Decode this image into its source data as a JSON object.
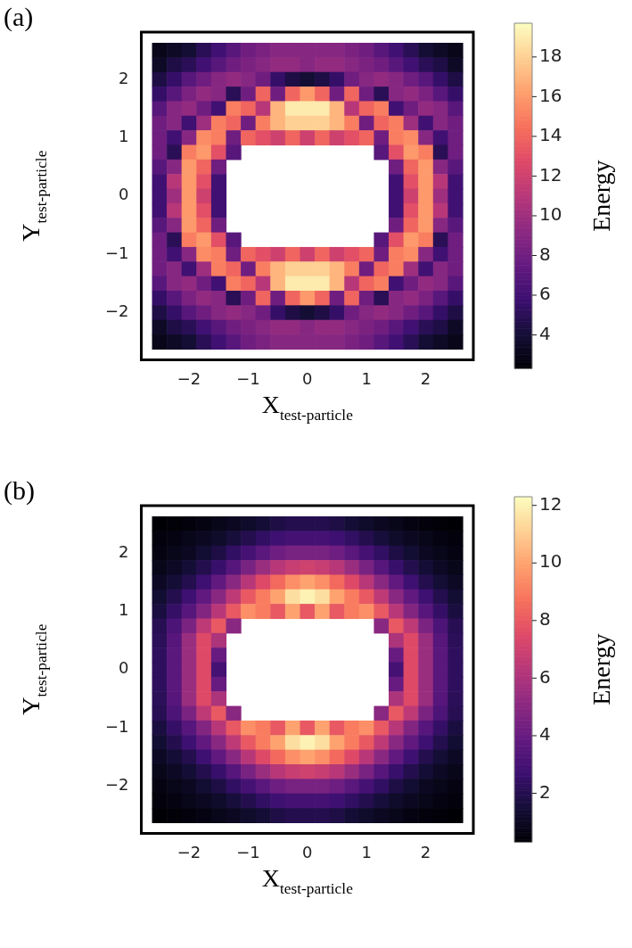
{
  "chart_data": [
    {
      "type": "heatmap",
      "title": "(a)",
      "xlabel": "X$_{test-particle}$",
      "ylabel": "Y$_{test-particle}$",
      "clabel": "Energy",
      "categories": [
        null,
        null,
        "−2",
        null,
        null,
        null,
        "−1",
        null,
        null,
        null,
        "0",
        null,
        null,
        null,
        "1",
        null,
        null,
        null,
        "2",
        null,
        null
      ],
      "y_categories": [
        null,
        null,
        "2",
        null,
        null,
        null,
        "1",
        null,
        null,
        null,
        "0",
        null,
        null,
        null,
        "−1",
        null,
        null,
        null,
        "−2",
        null,
        null
      ],
      "clim": [
        2.3,
        19.7
      ],
      "cticks": [
        4,
        6,
        8,
        10,
        12,
        14,
        16,
        18
      ],
      "cells": [
        [
          3,
          3.5,
          4,
          5,
          6,
          7,
          8,
          8.5,
          9,
          9,
          9,
          9,
          9,
          8.5,
          8,
          7,
          6,
          5,
          4,
          3.5,
          3
        ],
        [
          3.5,
          4.5,
          5,
          6,
          7,
          8,
          8.5,
          9,
          9.5,
          9.5,
          9,
          9.5,
          9.5,
          9,
          8.5,
          8,
          7,
          6,
          5,
          4.5,
          3.5
        ],
        [
          4.5,
          5.5,
          7,
          8,
          9,
          9.5,
          9,
          8,
          5.5,
          4.5,
          4,
          4.5,
          5.5,
          8,
          9,
          9.5,
          9,
          8,
          7,
          5.5,
          4.5
        ],
        [
          5.5,
          7,
          8.5,
          9.5,
          9,
          5,
          8,
          14,
          8,
          14,
          16,
          14,
          8,
          14,
          8,
          5,
          9,
          9.5,
          8.5,
          7,
          5.5
        ],
        [
          7,
          9,
          9.5,
          8,
          6,
          15,
          14,
          11,
          17,
          19,
          19,
          19,
          17,
          11,
          14,
          15,
          6,
          8,
          9.5,
          9,
          7
        ],
        [
          8,
          9,
          6,
          10,
          15,
          14,
          8,
          15,
          17,
          18,
          18,
          18,
          17,
          15,
          8,
          14,
          15,
          10,
          6,
          9,
          8
        ],
        [
          8,
          6,
          9,
          15.5,
          15,
          8,
          14,
          13,
          12,
          14,
          12,
          14,
          12,
          13,
          14,
          8,
          15,
          15.5,
          9,
          6,
          8
        ],
        [
          8,
          5,
          15,
          16,
          13,
          7,
          null,
          null,
          null,
          null,
          null,
          null,
          null,
          null,
          null,
          7,
          13,
          16,
          15,
          5,
          8
        ],
        [
          7,
          9,
          16,
          14,
          8,
          null,
          null,
          null,
          null,
          null,
          null,
          null,
          null,
          null,
          null,
          null,
          8,
          14,
          16,
          9,
          7
        ],
        [
          6,
          11,
          16,
          13,
          6,
          null,
          null,
          null,
          null,
          null,
          null,
          null,
          null,
          null,
          null,
          null,
          6,
          13,
          16,
          11,
          6
        ],
        [
          6,
          10,
          16,
          12,
          6,
          null,
          null,
          null,
          null,
          null,
          null,
          null,
          null,
          null,
          null,
          null,
          6,
          12,
          16,
          10,
          6
        ],
        [
          6,
          11,
          16,
          13,
          6,
          null,
          null,
          null,
          null,
          null,
          null,
          null,
          null,
          null,
          null,
          null,
          6,
          13,
          16,
          11,
          6
        ],
        [
          7,
          9,
          16,
          14,
          8,
          null,
          null,
          null,
          null,
          null,
          null,
          null,
          null,
          null,
          null,
          null,
          8,
          14,
          16,
          9,
          7
        ],
        [
          8,
          5,
          15,
          16,
          13,
          7,
          null,
          null,
          null,
          null,
          null,
          null,
          null,
          null,
          null,
          7,
          13,
          16,
          15,
          5,
          8
        ],
        [
          8,
          6,
          9,
          15.5,
          15,
          8,
          14,
          13,
          12,
          14,
          12,
          14,
          12,
          13,
          14,
          8,
          15,
          15.5,
          9,
          6,
          8
        ],
        [
          8,
          9,
          6,
          10,
          15,
          14,
          8,
          15,
          17,
          18,
          18,
          18,
          17,
          15,
          8,
          14,
          15,
          10,
          6,
          9,
          8
        ],
        [
          7,
          9,
          9.5,
          8,
          6,
          15,
          14,
          11,
          17,
          19,
          19,
          19,
          17,
          11,
          14,
          15,
          6,
          8,
          9.5,
          9,
          7
        ],
        [
          5.5,
          7,
          8.5,
          9.5,
          9,
          5,
          8,
          14,
          8,
          14,
          16,
          14,
          8,
          14,
          8,
          5,
          9,
          9.5,
          8.5,
          7,
          5.5
        ],
        [
          4.5,
          5.5,
          7,
          8,
          9,
          9.5,
          9,
          8,
          5.5,
          4.5,
          4,
          4.5,
          5.5,
          8,
          9,
          9.5,
          9,
          8,
          7,
          5.5,
          4.5
        ],
        [
          3.5,
          4.5,
          5,
          6,
          7,
          8,
          8.5,
          9,
          9.5,
          9.5,
          9,
          9.5,
          9.5,
          9,
          8.5,
          8,
          7,
          6,
          5,
          4.5,
          3.5
        ],
        [
          3,
          3.5,
          4,
          5,
          6,
          7,
          8,
          8.5,
          9,
          9,
          9,
          9,
          9,
          8.5,
          8,
          7,
          6,
          5,
          4,
          3.5,
          3
        ]
      ]
    },
    {
      "type": "heatmap",
      "title": "(b)",
      "xlabel": "X$_{test-particle}$",
      "ylabel": "Y$_{test-particle}$",
      "clabel": "Energy",
      "categories": [
        null,
        null,
        "−2",
        null,
        null,
        null,
        "−1",
        null,
        null,
        null,
        "0",
        null,
        null,
        null,
        "1",
        null,
        null,
        null,
        "2",
        null,
        null
      ],
      "y_categories": [
        null,
        null,
        "2",
        null,
        null,
        null,
        "1",
        null,
        null,
        null,
        "0",
        null,
        null,
        null,
        "−1",
        null,
        null,
        null,
        "−2",
        null,
        null
      ],
      "clim": [
        0.3,
        12.3
      ],
      "cticks": [
        2,
        4,
        6,
        8,
        10,
        12
      ],
      "cells": [
        [
          0.3,
          0.4,
          0.5,
          0.6,
          0.8,
          1,
          1.2,
          1.5,
          1.8,
          2,
          2,
          2,
          1.8,
          1.5,
          1.2,
          1,
          0.8,
          0.6,
          0.5,
          0.4,
          0.3
        ],
        [
          0.5,
          0.6,
          0.8,
          1,
          1.2,
          1.6,
          2,
          2.4,
          2.8,
          3,
          3,
          3,
          2.8,
          2.4,
          2,
          1.6,
          1.2,
          1,
          0.8,
          0.6,
          0.5
        ],
        [
          0.6,
          0.8,
          1,
          1.4,
          1.8,
          2.4,
          3,
          3.6,
          4.2,
          4.5,
          4.5,
          4.5,
          4.2,
          3.6,
          3,
          2.4,
          1.8,
          1.4,
          1,
          0.8,
          0.6
        ],
        [
          0.8,
          1.1,
          1.5,
          2,
          2.6,
          3.5,
          4.5,
          5.5,
          6.3,
          6.8,
          7,
          6.8,
          6.3,
          5.5,
          4.5,
          3.5,
          2.6,
          2,
          1.5,
          1.1,
          0.8
        ],
        [
          1.1,
          1.5,
          2,
          2.8,
          3.8,
          5,
          6.3,
          7.5,
          8.5,
          9.5,
          10,
          9.5,
          8.5,
          7.5,
          6.3,
          5,
          3.8,
          2.8,
          2,
          1.5,
          1.1
        ],
        [
          1.4,
          2,
          2.8,
          3.8,
          5,
          6.5,
          8,
          9,
          10,
          11.5,
          12,
          11.5,
          10,
          9,
          8,
          6.5,
          5,
          3.8,
          2.8,
          2,
          1.4
        ],
        [
          1.7,
          2.5,
          3.5,
          4.8,
          6.3,
          8,
          9.5,
          9,
          8,
          10,
          8,
          10,
          8,
          9,
          9.5,
          8,
          6.3,
          4.8,
          3.5,
          2.5,
          1.7
        ],
        [
          2.1,
          3.2,
          4.6,
          6.5,
          8,
          5,
          null,
          null,
          null,
          null,
          null,
          null,
          null,
          null,
          null,
          5,
          8,
          6.5,
          4.6,
          3.2,
          2.1
        ],
        [
          2.2,
          3.5,
          5.5,
          7.5,
          6,
          null,
          null,
          null,
          null,
          null,
          null,
          null,
          null,
          null,
          null,
          null,
          6,
          7.5,
          5.5,
          3.5,
          2.2
        ],
        [
          2.3,
          3.6,
          5.5,
          7.5,
          4,
          null,
          null,
          null,
          null,
          null,
          null,
          null,
          null,
          null,
          null,
          null,
          4,
          7.5,
          5.5,
          3.6,
          2.3
        ],
        [
          2.3,
          3.6,
          5.5,
          7.5,
          3,
          null,
          null,
          null,
          null,
          null,
          null,
          null,
          null,
          null,
          null,
          null,
          3,
          7.5,
          5.5,
          3.6,
          2.3
        ],
        [
          2.3,
          3.6,
          5.5,
          7.5,
          4,
          null,
          null,
          null,
          null,
          null,
          null,
          null,
          null,
          null,
          null,
          null,
          4,
          7.5,
          5.5,
          3.6,
          2.3
        ],
        [
          2.2,
          3.5,
          5.5,
          7.5,
          6,
          null,
          null,
          null,
          null,
          null,
          null,
          null,
          null,
          null,
          null,
          null,
          6,
          7.5,
          5.5,
          3.5,
          2.2
        ],
        [
          2.1,
          3.2,
          4.6,
          6.5,
          8,
          5,
          null,
          null,
          null,
          null,
          null,
          null,
          null,
          null,
          null,
          5,
          8,
          6.5,
          4.6,
          3.2,
          2.1
        ],
        [
          1.7,
          2.5,
          3.5,
          4.8,
          6.3,
          8,
          9.5,
          9,
          8,
          10,
          8,
          10,
          8,
          9,
          9.5,
          8,
          6.3,
          4.8,
          3.5,
          2.5,
          1.7
        ],
        [
          1.4,
          2,
          2.8,
          3.8,
          5,
          6.5,
          8,
          9,
          10,
          11.5,
          12,
          11.5,
          10,
          9,
          8,
          6.5,
          5,
          3.8,
          2.8,
          2,
          1.4
        ],
        [
          1.1,
          1.5,
          2,
          2.8,
          3.8,
          5,
          6.3,
          7.5,
          8.5,
          9.5,
          10,
          9.5,
          8.5,
          7.5,
          6.3,
          5,
          3.8,
          2.8,
          2,
          1.5,
          1.1
        ],
        [
          0.8,
          1.1,
          1.5,
          2,
          2.6,
          3.5,
          4.5,
          5.5,
          6.3,
          6.8,
          7,
          6.8,
          6.3,
          5.5,
          4.5,
          3.5,
          2.6,
          2,
          1.5,
          1.1,
          0.8
        ],
        [
          0.6,
          0.8,
          1,
          1.4,
          1.8,
          2.4,
          3,
          3.6,
          4.2,
          4.5,
          4.5,
          4.5,
          4.2,
          3.6,
          3,
          2.4,
          1.8,
          1.4,
          1,
          0.8,
          0.6
        ],
        [
          0.5,
          0.6,
          0.8,
          1,
          1.2,
          1.6,
          2,
          2.4,
          2.8,
          3,
          3,
          3,
          2.8,
          2.4,
          2,
          1.6,
          1.2,
          1,
          0.8,
          0.6,
          0.5
        ],
        [
          0.3,
          0.4,
          0.5,
          0.6,
          0.8,
          1,
          1.2,
          1.5,
          1.8,
          2,
          2,
          2,
          1.8,
          1.5,
          1.2,
          1,
          0.8,
          0.6,
          0.5,
          0.4,
          0.3
        ]
      ]
    }
  ]
}
